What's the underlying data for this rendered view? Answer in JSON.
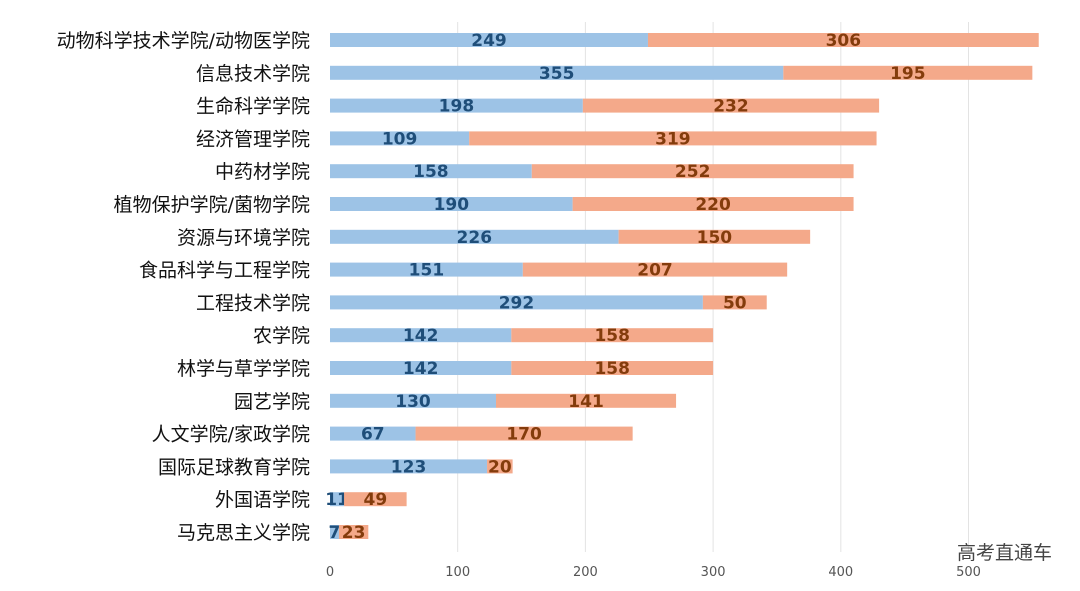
{
  "chart_data": {
    "type": "bar",
    "orientation": "horizontal",
    "stacked": true,
    "categories": [
      "动物科学技术学院/动物医学院",
      "信息技术学院",
      "生命科学学院",
      "经济管理学院",
      "中药材学院",
      "植物保护学院/菌物学院",
      "资源与环境学院",
      "食品科学与工程学院",
      "工程技术学院",
      "农学院",
      "林学与草学学院",
      "园艺学院",
      "人文学院/家政学院",
      "国际足球教育学院",
      "外国语学院",
      "马克思主义学院"
    ],
    "series": [
      {
        "color": "#9dc3e6",
        "label_color": "#1f4e79",
        "values": [
          249,
          355,
          198,
          109,
          158,
          190,
          226,
          151,
          292,
          142,
          142,
          130,
          67,
          123,
          11,
          7
        ]
      },
      {
        "color": "#f4a98a",
        "label_color": "#843c0c",
        "values": [
          306,
          195,
          232,
          319,
          252,
          220,
          150,
          207,
          50,
          158,
          158,
          141,
          170,
          20,
          49,
          23
        ]
      }
    ],
    "xticks": [
      "0",
      "100",
      "200",
      "300",
      "400",
      "500"
    ],
    "xlim": [
      0,
      550
    ],
    "grid": "vertical",
    "data_labels": true
  },
  "watermark": "高考直通车"
}
